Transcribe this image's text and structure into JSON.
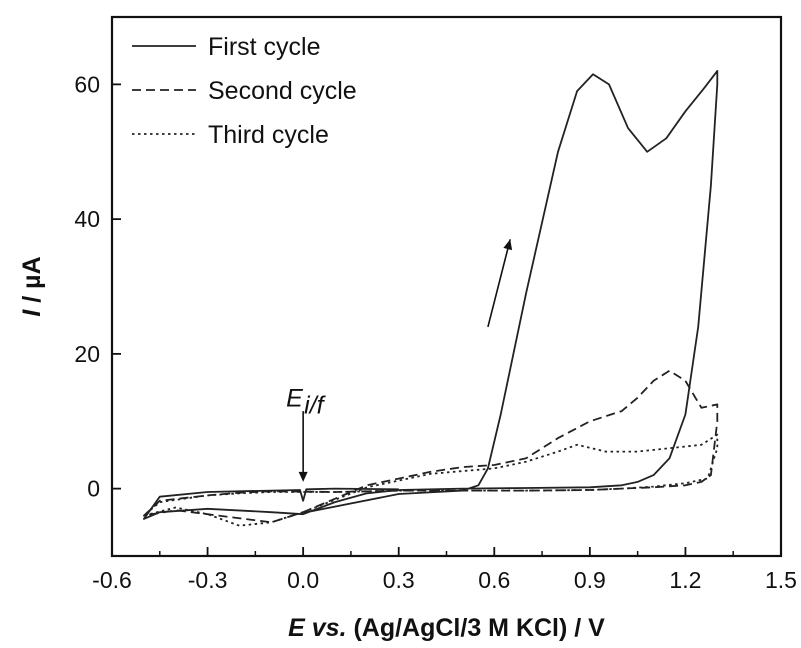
{
  "chart_data": {
    "type": "line",
    "title": "",
    "xlabel_parts": [
      "E vs.",
      " (Ag/AgCl/3 M KCl) / V"
    ],
    "ylabel_parts": [
      "I",
      " / µA"
    ],
    "xlim": [
      -0.6,
      1.5
    ],
    "ylim": [
      -10,
      70
    ],
    "xticks": [
      -0.6,
      -0.3,
      0.0,
      0.3,
      0.6,
      0.9,
      1.2,
      1.5
    ],
    "xtick_labels": [
      "-0.6",
      "-0.3",
      "0.0",
      "0.3",
      "0.6",
      "0.9",
      "1.2",
      "1.5"
    ],
    "yticks": [
      0,
      20,
      40,
      60
    ],
    "ytick_labels": [
      "0",
      "20",
      "40",
      "60"
    ],
    "legend_position": "top-left",
    "grid": false,
    "annotation": {
      "label_main": "E",
      "label_sub": "i/f",
      "x": 0.0,
      "text_y": 14,
      "arrow_from_y": 11.5,
      "arrow_to_y": 1.0
    },
    "scan_arrow": {
      "from": [
        0.58,
        24
      ],
      "to": [
        0.65,
        37
      ]
    },
    "series": [
      {
        "name": "First cycle",
        "style": "solid",
        "x": [
          0.0,
          0.3,
          0.5,
          0.55,
          0.58,
          0.62,
          0.7,
          0.8,
          0.86,
          0.91,
          0.96,
          1.02,
          1.08,
          1.14,
          1.2,
          1.26,
          1.3,
          1.3,
          1.28,
          1.24,
          1.2,
          1.15,
          1.1,
          1.05,
          1.0,
          0.9,
          0.7,
          0.5,
          0.3,
          0.2,
          0.1,
          0.0,
          -0.1,
          -0.3,
          -0.45,
          -0.5,
          -0.45,
          -0.3,
          -0.1,
          -0.01,
          0.0,
          0.01,
          0.1,
          0.3
        ],
        "y": [
          -3.6,
          -0.8,
          -0.3,
          0.5,
          3.0,
          11.0,
          29.0,
          50.0,
          59.0,
          61.5,
          60.0,
          53.5,
          50.0,
          52.0,
          56.0,
          59.5,
          62.0,
          60.0,
          45.0,
          24.0,
          11.0,
          4.5,
          2.0,
          1.0,
          0.5,
          0.2,
          0.1,
          0.0,
          -0.2,
          -0.7,
          -2.0,
          -3.8,
          -3.5,
          -3.0,
          -3.5,
          -4.5,
          -1.2,
          -0.5,
          -0.3,
          -0.2,
          -1.8,
          -0.1,
          0.0,
          -0.1
        ]
      },
      {
        "name": "Second cycle",
        "style": "dashed",
        "x": [
          0.0,
          0.2,
          0.4,
          0.5,
          0.6,
          0.7,
          0.8,
          0.9,
          1.0,
          1.05,
          1.1,
          1.15,
          1.2,
          1.25,
          1.3,
          1.3,
          1.28,
          1.25,
          1.2,
          1.1,
          1.0,
          0.9,
          0.7,
          0.5,
          0.3,
          0.1,
          -0.1,
          -0.2,
          -0.3,
          -0.45,
          -0.5,
          -0.4,
          -0.3,
          -0.1,
          0.0
        ],
        "y": [
          -3.5,
          0.5,
          2.5,
          3.2,
          3.5,
          4.5,
          7.5,
          10.0,
          11.5,
          13.5,
          16.0,
          17.5,
          16.0,
          12.0,
          12.5,
          10.0,
          2.0,
          1.0,
          0.5,
          0.2,
          0.0,
          -0.2,
          -0.3,
          -0.3,
          -0.3,
          -0.5,
          -0.4,
          -0.6,
          -1.0,
          -1.8,
          -4.0,
          -3.2,
          -3.8,
          -5.0,
          -3.5
        ]
      },
      {
        "name": "Third cycle",
        "style": "dotted",
        "x": [
          0.0,
          0.2,
          0.4,
          0.6,
          0.7,
          0.8,
          0.86,
          0.95,
          1.05,
          1.15,
          1.25,
          1.3,
          1.3,
          1.27,
          1.2,
          1.1,
          1.0,
          0.9,
          0.7,
          0.5,
          0.3,
          0.1,
          -0.1,
          -0.2,
          -0.3,
          -0.45,
          -0.5,
          -0.4,
          -0.3,
          -0.2,
          -0.1,
          0.0
        ],
        "y": [
          -3.5,
          0.2,
          2.2,
          3.0,
          4.0,
          5.5,
          6.5,
          5.5,
          5.5,
          6.0,
          6.5,
          8.0,
          6.0,
          1.5,
          0.8,
          0.3,
          0.0,
          -0.2,
          -0.3,
          -0.3,
          -0.3,
          -0.5,
          -0.5,
          -0.7,
          -1.0,
          -2.0,
          -4.0,
          -2.8,
          -3.8,
          -5.5,
          -5.0,
          -3.5
        ]
      }
    ]
  }
}
